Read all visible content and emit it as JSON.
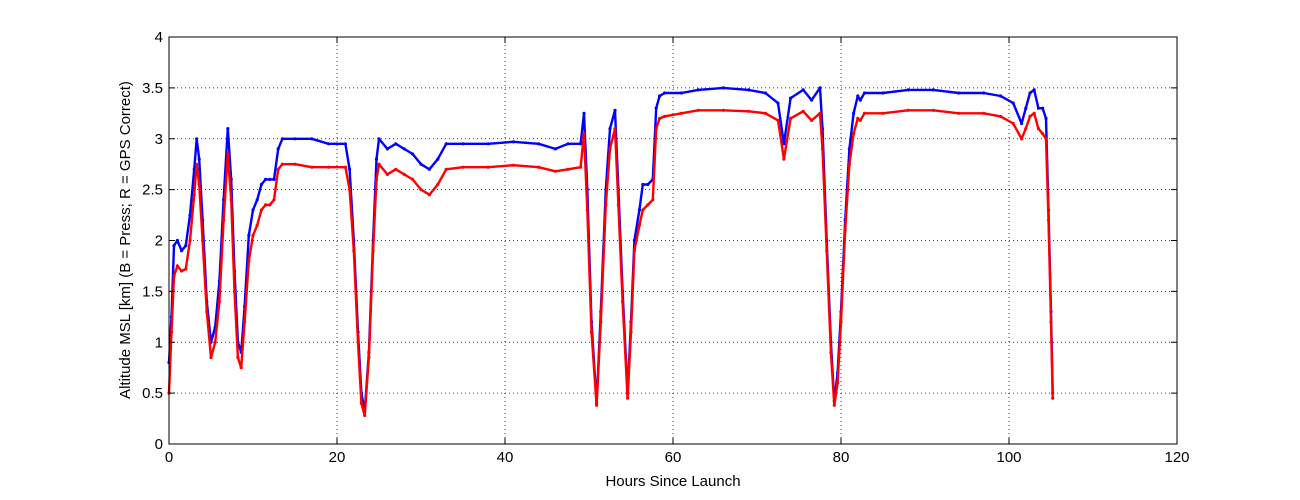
{
  "chart_data": {
    "type": "line",
    "title": "",
    "xlabel": "Hours Since Launch",
    "ylabel": "Altitude MSL [km]   (B = Press; R = GPS Correct)",
    "xlim": [
      0,
      120
    ],
    "ylim": [
      0,
      4
    ],
    "xticks": [
      0,
      20,
      40,
      60,
      80,
      100,
      120
    ],
    "yticks": [
      0,
      0.5,
      1,
      1.5,
      2,
      2.5,
      3,
      3.5,
      4
    ],
    "grid": true,
    "legend": "none",
    "series": [
      {
        "color": "#0000ff",
        "marker": "dot",
        "x": [
          0,
          0.3,
          0.6,
          1,
          1.5,
          2,
          2.5,
          3,
          3.3,
          3.6,
          4,
          4.5,
          5,
          5.5,
          6,
          6.5,
          7,
          7.4,
          7.8,
          8.2,
          8.6,
          9,
          9.5,
          10,
          10.5,
          11,
          11.5,
          12,
          12.5,
          13,
          13.5,
          15,
          17,
          19,
          21,
          21.5,
          22,
          22.5,
          22.9,
          23.3,
          23.8,
          24.3,
          24.7,
          25,
          26,
          27,
          28,
          29,
          30,
          31,
          32,
          33,
          35,
          38,
          41,
          44,
          46,
          47.5,
          49,
          49.4,
          49.8,
          50.3,
          50.9,
          51.4,
          52,
          52.5,
          53.1,
          53.5,
          54,
          54.6,
          55,
          55.4,
          56,
          56.4,
          57,
          57.6,
          58,
          58.4,
          59,
          61,
          63,
          66,
          69,
          71,
          72.5,
          73.2,
          74,
          75.5,
          76.5,
          77.5,
          77.8,
          78.3,
          78.8,
          79.2,
          79.6,
          80,
          80.5,
          81,
          81.5,
          82,
          82.3,
          82.8,
          85,
          88,
          91,
          94,
          97,
          99,
          100.5,
          101.5,
          102,
          102.5,
          103,
          103.5,
          104,
          104.4,
          104.7,
          105,
          105.2
        ],
        "y": [
          0.8,
          1.25,
          1.95,
          2.0,
          1.9,
          1.95,
          2.25,
          2.7,
          3.0,
          2.8,
          2.2,
          1.4,
          1.0,
          1.15,
          1.6,
          2.4,
          3.1,
          2.6,
          1.7,
          1.0,
          0.9,
          1.35,
          2.05,
          2.3,
          2.4,
          2.55,
          2.6,
          2.6,
          2.6,
          2.9,
          3.0,
          3.0,
          3.0,
          2.95,
          2.95,
          2.7,
          2.0,
          1.1,
          0.5,
          0.32,
          0.9,
          2.0,
          2.8,
          3.0,
          2.9,
          2.95,
          2.9,
          2.85,
          2.75,
          2.7,
          2.8,
          2.95,
          2.95,
          2.95,
          2.97,
          2.95,
          2.9,
          2.95,
          2.95,
          3.25,
          2.5,
          1.2,
          0.4,
          1.3,
          2.5,
          3.1,
          3.28,
          2.5,
          1.5,
          0.5,
          1.2,
          2.0,
          2.3,
          2.55,
          2.55,
          2.6,
          3.3,
          3.42,
          3.45,
          3.45,
          3.48,
          3.5,
          3.48,
          3.45,
          3.35,
          2.95,
          3.4,
          3.48,
          3.38,
          3.5,
          3.1,
          2.0,
          1.0,
          0.42,
          0.7,
          1.3,
          2.2,
          2.9,
          3.25,
          3.42,
          3.38,
          3.45,
          3.45,
          3.48,
          3.48,
          3.45,
          3.45,
          3.42,
          3.35,
          3.15,
          3.3,
          3.45,
          3.48,
          3.3,
          3.3,
          3.2,
          2.3,
          1.3,
          0.5
        ]
      },
      {
        "color": "#ff0000",
        "marker": "dot",
        "x": [
          0,
          0.3,
          0.6,
          1,
          1.5,
          2,
          2.5,
          3,
          3.3,
          3.6,
          4,
          4.5,
          5,
          5.5,
          6,
          6.5,
          7,
          7.4,
          7.8,
          8.2,
          8.6,
          9,
          9.5,
          10,
          10.5,
          11,
          11.5,
          12,
          12.5,
          13,
          13.5,
          15,
          17,
          19,
          21,
          21.5,
          22,
          22.5,
          22.9,
          23.3,
          23.8,
          24.3,
          24.7,
          25,
          26,
          27,
          28,
          29,
          30,
          31,
          32,
          33,
          35,
          38,
          41,
          44,
          46,
          47.5,
          49,
          49.4,
          49.8,
          50.3,
          50.9,
          51.4,
          52,
          52.5,
          53.1,
          53.5,
          54,
          54.6,
          55,
          55.4,
          56,
          56.4,
          57,
          57.6,
          58,
          58.4,
          59,
          61,
          63,
          66,
          69,
          71,
          72.5,
          73.2,
          74,
          75.5,
          76.5,
          77.5,
          77.8,
          78.3,
          78.8,
          79.2,
          79.6,
          80,
          80.5,
          81,
          81.5,
          82,
          82.3,
          82.8,
          85,
          88,
          91,
          94,
          97,
          99,
          100.5,
          101.5,
          102,
          102.5,
          103,
          103.5,
          104,
          104.4,
          104.7,
          105,
          105.2
        ],
        "y": [
          0.5,
          1.1,
          1.65,
          1.75,
          1.7,
          1.72,
          2.0,
          2.45,
          2.75,
          2.55,
          2.0,
          1.3,
          0.85,
          1.0,
          1.4,
          2.2,
          2.85,
          2.4,
          1.5,
          0.85,
          0.75,
          1.2,
          1.8,
          2.05,
          2.15,
          2.3,
          2.35,
          2.35,
          2.4,
          2.7,
          2.75,
          2.75,
          2.72,
          2.72,
          2.72,
          2.5,
          1.9,
          1.0,
          0.4,
          0.28,
          0.85,
          1.9,
          2.6,
          2.75,
          2.65,
          2.7,
          2.65,
          2.6,
          2.5,
          2.45,
          2.55,
          2.7,
          2.72,
          2.72,
          2.74,
          2.72,
          2.68,
          2.7,
          2.72,
          3.05,
          2.3,
          1.1,
          0.38,
          1.2,
          2.35,
          2.9,
          3.1,
          2.35,
          1.4,
          0.45,
          1.1,
          1.9,
          2.15,
          2.3,
          2.35,
          2.4,
          3.1,
          3.2,
          3.22,
          3.25,
          3.28,
          3.28,
          3.27,
          3.25,
          3.18,
          2.8,
          3.2,
          3.27,
          3.18,
          3.25,
          2.9,
          1.9,
          0.9,
          0.38,
          0.6,
          1.2,
          2.1,
          2.75,
          3.05,
          3.2,
          3.18,
          3.25,
          3.25,
          3.28,
          3.28,
          3.25,
          3.25,
          3.22,
          3.15,
          3.0,
          3.1,
          3.22,
          3.25,
          3.1,
          3.05,
          3.0,
          2.2,
          1.2,
          0.45
        ]
      }
    ]
  }
}
